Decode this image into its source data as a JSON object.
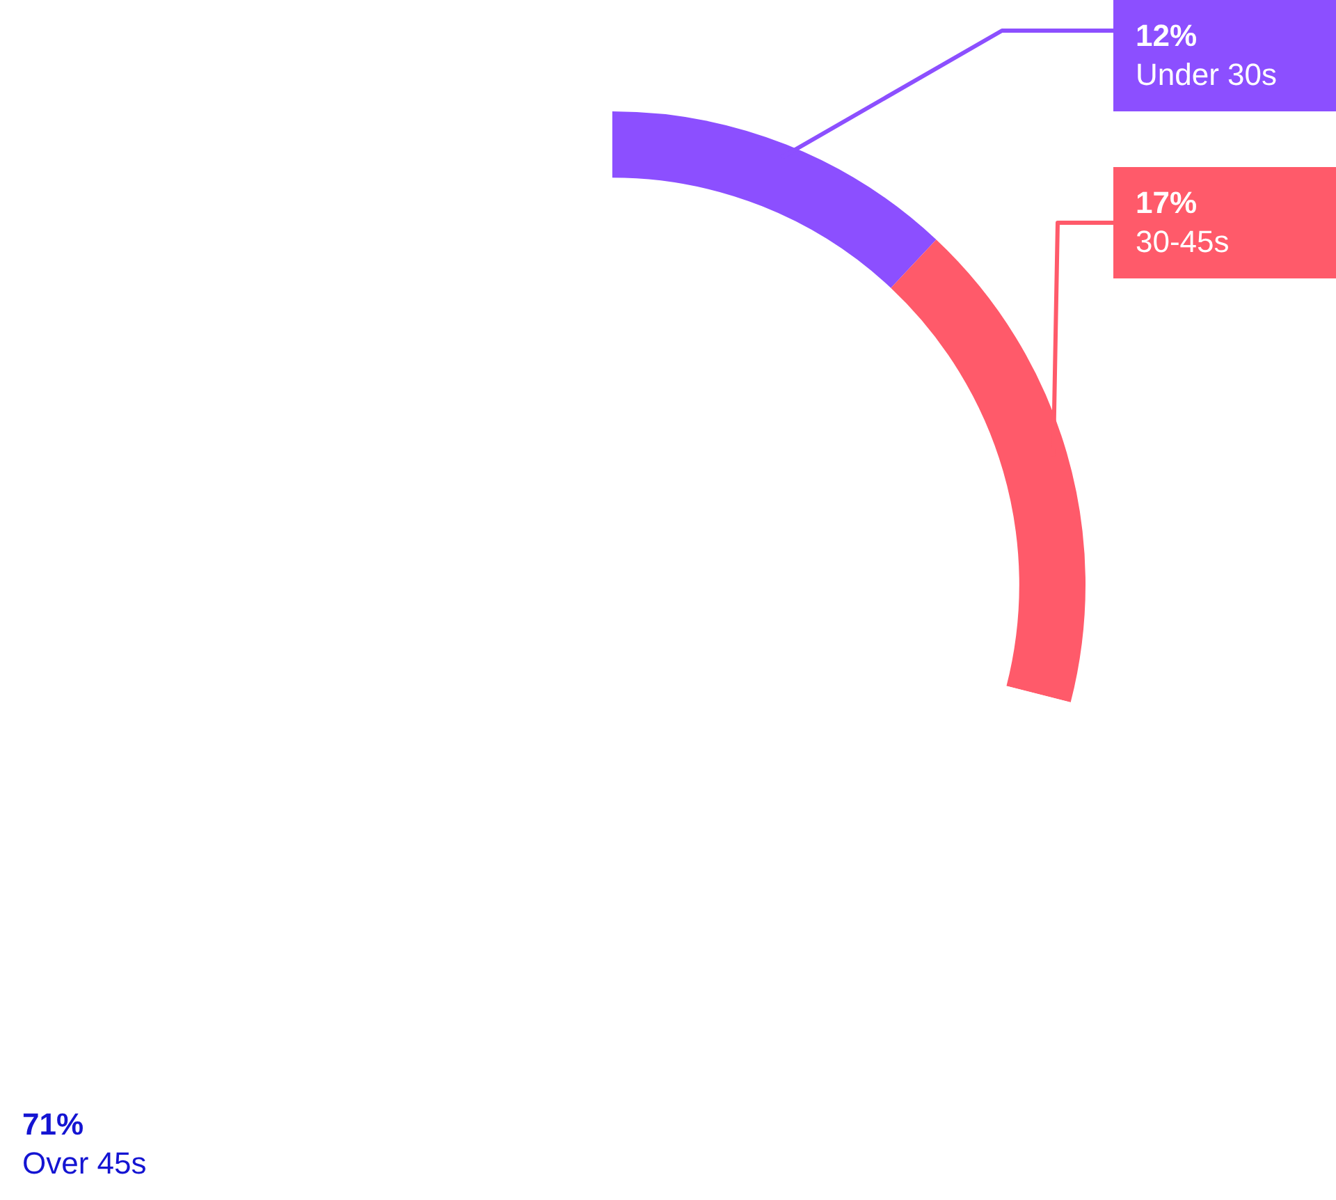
{
  "chart_data": {
    "type": "donut",
    "categories": [
      "Under 30s",
      "30-45s",
      "Over 45s"
    ],
    "values": [
      12,
      17,
      71
    ],
    "value_labels": [
      "12%",
      "17%",
      "71%"
    ],
    "colors": [
      "#8c4fff",
      "#ff5a6a",
      "#ffffff"
    ],
    "legend": false
  }
}
